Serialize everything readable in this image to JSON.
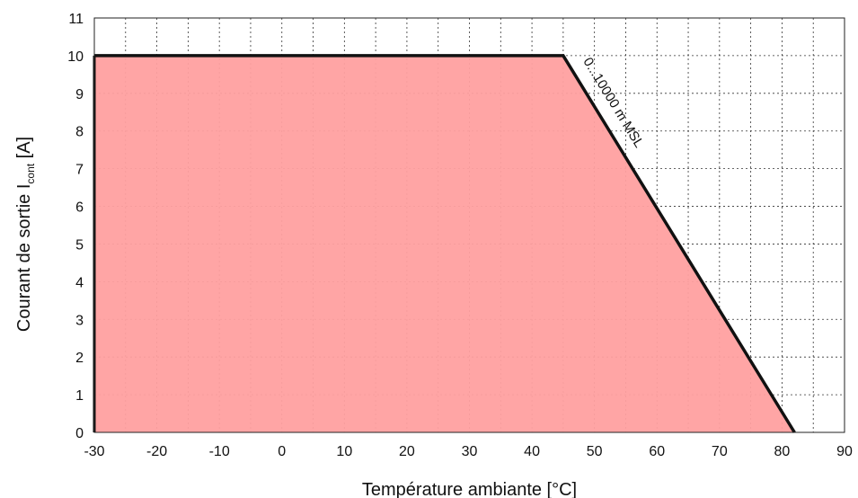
{
  "chart_data": {
    "type": "area",
    "title": "",
    "xlabel": "Température ambiante [°C]",
    "ylabel": {
      "main": "Courant de sortie I",
      "subscript": "cont",
      "unit": " [A]"
    },
    "xlim": [
      -30,
      90
    ],
    "ylim": [
      0,
      11
    ],
    "x_ticks": [
      -30,
      -20,
      -10,
      0,
      10,
      20,
      30,
      40,
      50,
      60,
      70,
      80,
      90
    ],
    "y_ticks": [
      0,
      1,
      2,
      3,
      4,
      5,
      6,
      7,
      8,
      9,
      10,
      11
    ],
    "x_minor_step": 5,
    "y_minor_step": 1,
    "grid": true,
    "series": [
      {
        "name": "0...10000 m MSL",
        "x": [
          -30,
          45,
          82
        ],
        "y": [
          10,
          10,
          0
        ],
        "fill_color": "#ffa0a0",
        "line_color": "#111111"
      }
    ]
  }
}
